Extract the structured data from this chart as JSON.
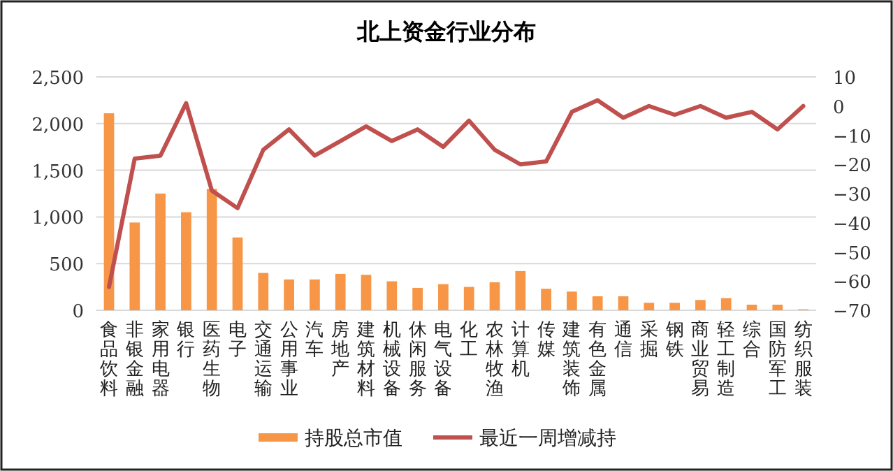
{
  "chart_data": {
    "type": "bar",
    "title": "北上资金行业分布",
    "categories": [
      "食品饮料",
      "非银金融",
      "家用电器",
      "银行",
      "医药生物",
      "电子",
      "交通运输",
      "公用事业",
      "汽车",
      "房地产",
      "建筑材料",
      "机械设备",
      "休闲服务",
      "电气设备",
      "化工",
      "农林牧渔",
      "计算机",
      "传媒",
      "建筑装饰",
      "有色金属",
      "通信",
      "采掘",
      "钢铁",
      "商业贸易",
      "轻工制造",
      "综合",
      "国防军工",
      "纺织服装"
    ],
    "series": [
      {
        "name": "持股总市值",
        "color": "#f79646",
        "values": [
          2110,
          940,
          1250,
          1050,
          1300,
          780,
          400,
          330,
          330,
          390,
          380,
          310,
          240,
          280,
          250,
          300,
          420,
          230,
          200,
          150,
          150,
          80,
          80,
          110,
          130,
          60,
          60,
          10
        ]
      },
      {
        "name": "最近一周增减持",
        "type": "line",
        "axis": "y2",
        "color": "#c0504d",
        "values": [
          -62,
          -18,
          -17,
          1,
          -29,
          -35,
          -15,
          -8,
          -17,
          -12,
          -7,
          -12,
          -8,
          -14,
          -5,
          -15,
          -20,
          -19,
          -2,
          2,
          -4,
          0,
          -3,
          0,
          -4,
          -2,
          -8,
          0
        ]
      }
    ],
    "ylim": [
      0,
      2500
    ],
    "yticks": [
      0,
      {
        "value": 500,
        "label": "500"
      },
      {
        "value": 1000,
        "label": "1,000"
      },
      {
        "value": 1500,
        "label": "1,500"
      },
      {
        "value": 2000,
        "label": "2,000"
      },
      {
        "value": 2500,
        "label": "2,500"
      }
    ],
    "y2lim": [
      -70,
      10
    ],
    "y2ticks": [
      -70,
      -60,
      -50,
      -40,
      -30,
      -20,
      -10,
      0,
      10
    ],
    "grid": "y",
    "legend": "bottom"
  }
}
